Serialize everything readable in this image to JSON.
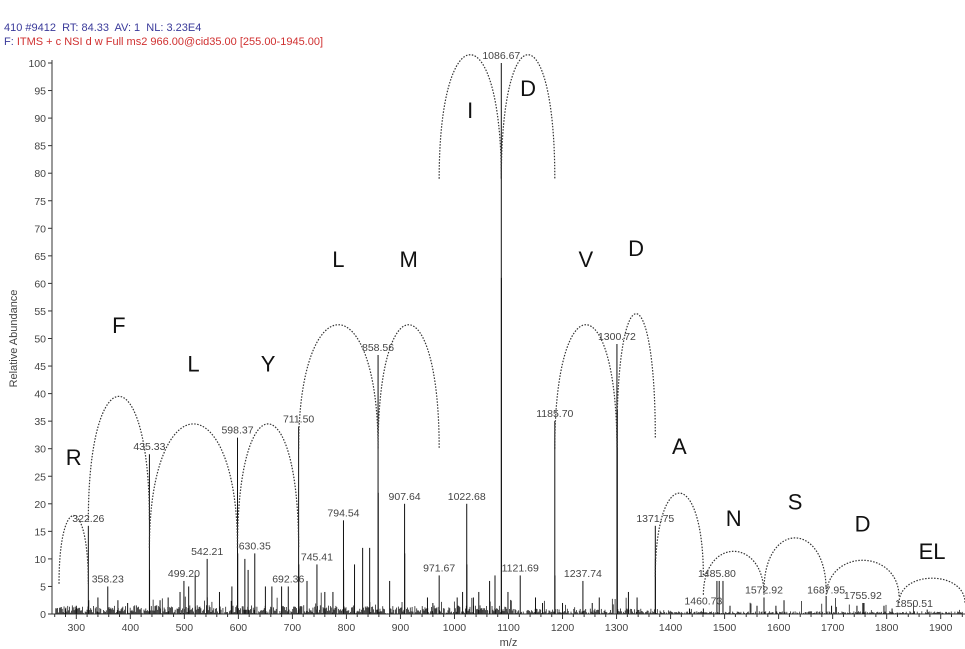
{
  "header": {
    "line1": "410 #9412  RT: 84.33  AV: 1  NL: 3.23E4",
    "line2_prefix": "F:",
    "line2": "ITMS + c NSI d w Full ms2 966.00@cid35.00 [255.00-1945.00]"
  },
  "chart_data": {
    "type": "bar",
    "xlabel": "m/z",
    "ylabel": "Relative Abundance",
    "xlim": [
      255,
      1945
    ],
    "ylim": [
      0,
      100
    ],
    "x_ticks": [
      300,
      400,
      500,
      600,
      700,
      800,
      900,
      1000,
      1100,
      1200,
      1300,
      1400,
      1500,
      1600,
      1700,
      1800,
      1900
    ],
    "y_ticks": [
      0,
      5,
      10,
      15,
      20,
      25,
      30,
      35,
      40,
      45,
      50,
      55,
      60,
      65,
      70,
      75,
      80,
      85,
      90,
      95,
      100
    ],
    "labeled_peaks": [
      {
        "mz": 322.26,
        "label": "322.26",
        "intensity": 16
      },
      {
        "mz": 358.23,
        "label": "358.23",
        "intensity": 5
      },
      {
        "mz": 435.33,
        "label": "435.33",
        "intensity": 29
      },
      {
        "mz": 499.2,
        "label": "499.20",
        "intensity": 6
      },
      {
        "mz": 542.21,
        "label": "542.21",
        "intensity": 10
      },
      {
        "mz": 598.37,
        "label": "598.37",
        "intensity": 32
      },
      {
        "mz": 630.35,
        "label": "630.35",
        "intensity": 11
      },
      {
        "mz": 692.36,
        "label": "692.36",
        "intensity": 5
      },
      {
        "mz": 711.5,
        "label": "711.50",
        "intensity": 34
      },
      {
        "mz": 745.41,
        "label": "745.41",
        "intensity": 9
      },
      {
        "mz": 794.54,
        "label": "794.54",
        "intensity": 17
      },
      {
        "mz": 858.56,
        "label": "858.56",
        "intensity": 47
      },
      {
        "mz": 907.64,
        "label": "907.64",
        "intensity": 20
      },
      {
        "mz": 971.67,
        "label": "971.67",
        "intensity": 7
      },
      {
        "mz": 1022.68,
        "label": "1022.68",
        "intensity": 20
      },
      {
        "mz": 1086.67,
        "label": "1086.67",
        "intensity": 100
      },
      {
        "mz": 1121.69,
        "label": "1121.69",
        "intensity": 7
      },
      {
        "mz": 1185.7,
        "label": "1185.70",
        "intensity": 35
      },
      {
        "mz": 1237.74,
        "label": "1237.74",
        "intensity": 6
      },
      {
        "mz": 1300.72,
        "label": "1300.72",
        "intensity": 49
      },
      {
        "mz": 1371.75,
        "label": "1371.75",
        "intensity": 16
      },
      {
        "mz": 1460.73,
        "label": "1460.73",
        "intensity": 1
      },
      {
        "mz": 1485.8,
        "label": "1485.80",
        "intensity": 6
      },
      {
        "mz": 1572.92,
        "label": "1572.92",
        "intensity": 3
      },
      {
        "mz": 1687.95,
        "label": "1687.95",
        "intensity": 3
      },
      {
        "mz": 1755.92,
        "label": "1755.92",
        "intensity": 2
      },
      {
        "mz": 1850.51,
        "label": "1850.51",
        "intensity": 0.5
      }
    ],
    "unlabeled_peaks": [
      [
        1086.9,
        61
      ],
      [
        858.9,
        22
      ],
      [
        907.9,
        11
      ],
      [
        1022.9,
        9
      ],
      [
        1185.9,
        7
      ],
      [
        1300.9,
        12
      ],
      [
        1301.5,
        37
      ],
      [
        1371.9,
        10
      ],
      [
        598.8,
        11
      ],
      [
        435.6,
        8
      ],
      [
        711.8,
        9
      ],
      [
        794.8,
        8
      ],
      [
        830,
        12
      ],
      [
        843,
        12
      ],
      [
        880,
        6
      ],
      [
        1045,
        4
      ],
      [
        1065,
        6
      ],
      [
        1075,
        7
      ],
      [
        1099,
        4
      ],
      [
        1150,
        3
      ],
      [
        1163,
        2
      ],
      [
        1200,
        2
      ],
      [
        1255,
        2
      ],
      [
        1268,
        3
      ],
      [
        1322,
        4
      ],
      [
        1338,
        3
      ],
      [
        1435,
        1
      ],
      [
        1490,
        6
      ],
      [
        1497,
        6
      ],
      [
        1510,
        1.5
      ],
      [
        1560,
        1.5
      ],
      [
        1595,
        1.5
      ],
      [
        1610,
        2.5
      ],
      [
        1698,
        1.5
      ],
      [
        1745,
        1.5
      ],
      [
        1758,
        2
      ],
      [
        1795,
        1.5
      ],
      [
        1810,
        1
      ],
      [
        1875,
        0.8
      ],
      [
        612,
        10
      ],
      [
        618,
        8
      ],
      [
        650,
        5
      ],
      [
        662,
        5
      ],
      [
        680,
        5
      ],
      [
        588,
        5
      ],
      [
        565,
        4
      ],
      [
        520,
        7
      ],
      [
        508,
        5
      ],
      [
        492,
        4
      ],
      [
        470,
        3
      ],
      [
        455,
        2.5
      ],
      [
        395,
        2
      ],
      [
        377,
        2.5
      ],
      [
        340,
        3
      ],
      [
        300,
        1.5
      ],
      [
        280,
        1
      ],
      [
        727,
        6
      ],
      [
        760,
        4
      ],
      [
        775,
        4
      ],
      [
        815,
        9
      ],
      [
        950,
        3
      ],
      [
        960,
        2
      ],
      [
        1005,
        3
      ],
      [
        1015,
        4
      ],
      [
        1035,
        3
      ]
    ],
    "fragment_arcs": [
      {
        "label": "R",
        "from": 268,
        "to": 322.26,
        "height": 22,
        "label_y": 27
      },
      {
        "label": "F",
        "from": 322.26,
        "to": 435.33,
        "height": 47,
        "label_y": 51
      },
      {
        "label": "L",
        "from": 435.33,
        "to": 598.37,
        "height": 42,
        "label_y": 44
      },
      {
        "label": "Y",
        "from": 598.37,
        "to": 711.5,
        "height": 42,
        "label_y": 44
      },
      {
        "label": "L",
        "from": 711.5,
        "to": 858.56,
        "height": 60,
        "label_y": 63
      },
      {
        "label": "M",
        "from": 858.56,
        "to": 971.67,
        "height": 60,
        "label_y": 63
      },
      {
        "label": "I",
        "from": 971.67,
        "to": 1086.67,
        "height": 109,
        "label_y": 90
      },
      {
        "label": "D",
        "from": 1086.67,
        "to": 1185.7,
        "height": 109,
        "label_y": 94
      },
      {
        "label": "V",
        "from": 1185.7,
        "to": 1300.72,
        "height": 60,
        "label_y": 63
      },
      {
        "label": "D",
        "from": 1300.72,
        "to": 1371.75,
        "height": 62,
        "label_y": 65
      },
      {
        "label": "A",
        "from": 1371.75,
        "to": 1460.73,
        "height": 27,
        "label_y": 29
      },
      {
        "label": "N",
        "from": 1460.73,
        "to": 1572.92,
        "height": 14,
        "label_y": 16
      },
      {
        "label": "S",
        "from": 1572.92,
        "to": 1687.95,
        "height": 17,
        "label_y": 19
      },
      {
        "label": "D",
        "from": 1687.95,
        "to": 1823,
        "height": 12,
        "label_y": 15
      },
      {
        "label": "EL",
        "from": 1823,
        "to": 1945,
        "height": 8,
        "label_y": 10
      }
    ]
  }
}
